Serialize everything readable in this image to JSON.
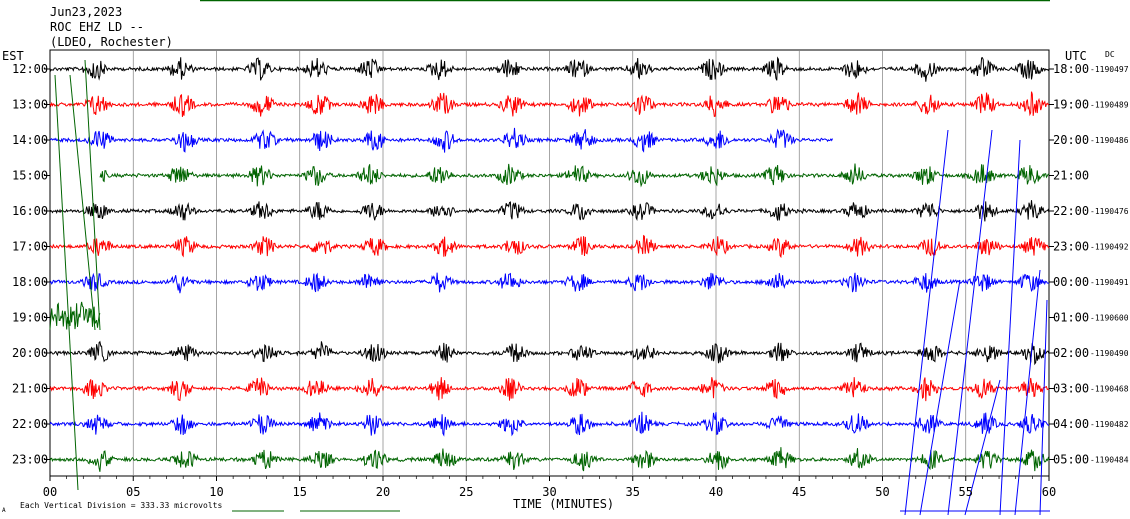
{
  "header": {
    "date": "Jun23,2023",
    "station": "ROC EHZ LD --",
    "network": "(LDEO, Rochester)"
  },
  "left_timezone": "EST",
  "right_timezone": "UTC",
  "dc_label": "DC",
  "footer": {
    "scale_note": "Each Vertical Division =  333.33 microvolts",
    "corner_mark": "A"
  },
  "chart_data": {
    "type": "line",
    "title": "",
    "xlabel": "TIME (MINUTES)",
    "ylabel": "",
    "xlim": [
      0,
      60
    ],
    "x_ticks": [
      "00",
      "05",
      "10",
      "15",
      "20",
      "25",
      "30",
      "35",
      "40",
      "45",
      "50",
      "55",
      "60"
    ],
    "grid": "vertical lines every 5 minutes",
    "trace_colors": [
      "#000000",
      "#ff0000",
      "#0000ff",
      "#006400"
    ],
    "rows": [
      {
        "est": "12:00",
        "utc": "18:00",
        "dc": "-1190497",
        "color": "#000000",
        "data_start": 0,
        "data_end": 60,
        "amp": 1.0
      },
      {
        "est": "13:00",
        "utc": "19:00",
        "dc": "-1190489",
        "color": "#ff0000",
        "data_start": 0,
        "data_end": 60,
        "amp": 1.1
      },
      {
        "est": "14:00",
        "utc": "20:00",
        "dc": "-1190486",
        "color": "#0000ff",
        "data_start": 0,
        "data_end": 47,
        "amp": 1.0
      },
      {
        "est": "15:00",
        "utc": "21:00",
        "dc": "",
        "color": "#006400",
        "data_start": 3,
        "data_end": 60,
        "amp": 1.0
      },
      {
        "est": "16:00",
        "utc": "22:00",
        "dc": "-1190476",
        "color": "#000000",
        "data_start": 0,
        "data_end": 60,
        "amp": 0.9
      },
      {
        "est": "17:00",
        "utc": "23:00",
        "dc": "-1190492",
        "color": "#ff0000",
        "data_start": 0,
        "data_end": 60,
        "amp": 0.9
      },
      {
        "est": "18:00",
        "utc": "00:00",
        "dc": "-1190491",
        "color": "#0000ff",
        "data_start": 0,
        "data_end": 60,
        "amp": 0.9
      },
      {
        "est": "19:00",
        "utc": "01:00",
        "dc": "-1190600",
        "color": "#006400",
        "data_start": 0,
        "data_end": 3,
        "amp": 1.3
      },
      {
        "est": "20:00",
        "utc": "02:00",
        "dc": "-1190490",
        "color": "#000000",
        "data_start": 0,
        "data_end": 60,
        "amp": 0.9
      },
      {
        "est": "21:00",
        "utc": "03:00",
        "dc": "-1190468",
        "color": "#ff0000",
        "data_start": 0,
        "data_end": 60,
        "amp": 1.0
      },
      {
        "est": "22:00",
        "utc": "04:00",
        "dc": "-1190482",
        "color": "#0000ff",
        "data_start": 0,
        "data_end": 60,
        "amp": 1.0
      },
      {
        "est": "23:00",
        "utc": "05:00",
        "dc": "-1190484",
        "color": "#006400",
        "data_start": 0,
        "data_end": 60,
        "amp": 1.0
      }
    ],
    "bursts_minutes": [
      2.7,
      7.8,
      12.6,
      16.0,
      19.2,
      23.4,
      27.6,
      31.7,
      35.4,
      39.8,
      43.6,
      48.3,
      52.6,
      56.0,
      58.8
    ]
  }
}
